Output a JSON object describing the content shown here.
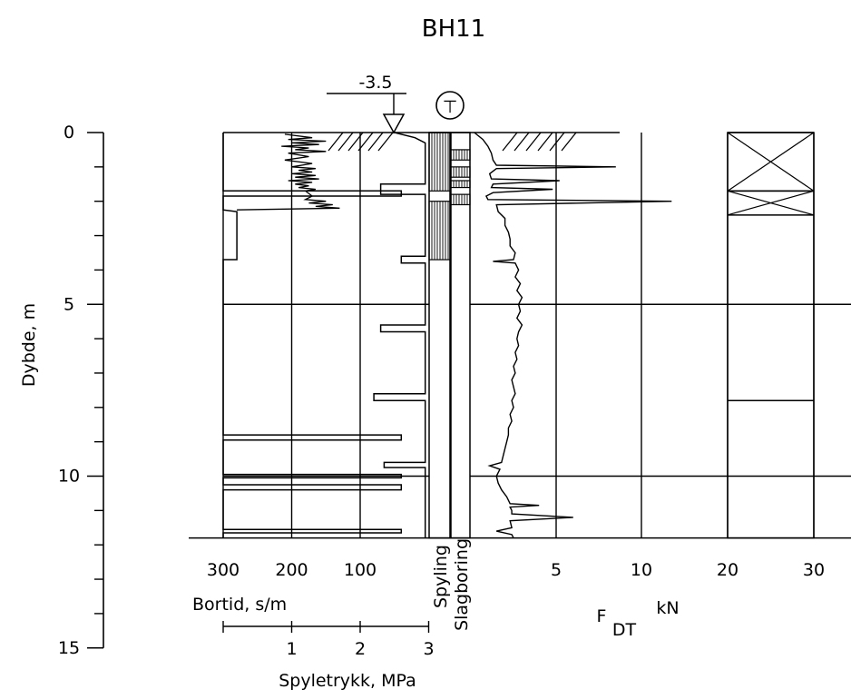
{
  "chart_data": {
    "type": "line",
    "title": "BH11",
    "water_level": "-3.5",
    "symbol": "⊤",
    "depth_axis": {
      "label": "Dybde, m",
      "range": [
        0,
        15
      ],
      "ticks": [
        0,
        5,
        10,
        15
      ],
      "tick_labels": [
        "0",
        "5",
        "10",
        "15"
      ]
    },
    "bore_depth_m": 11.8,
    "bortid": {
      "label": "Bortid, s/m",
      "ticks": [
        300,
        200,
        100
      ],
      "tick_labels": [
        "300",
        "200",
        "100"
      ],
      "range": [
        300,
        0
      ],
      "trace": [
        [
          0.0,
          300
        ],
        [
          0.05,
          300
        ],
        [
          1.7,
          300
        ],
        [
          1.7,
          40
        ],
        [
          1.85,
          40
        ],
        [
          1.85,
          300
        ],
        [
          2.25,
          300
        ],
        [
          2.3,
          280
        ],
        [
          3.7,
          280
        ],
        [
          3.7,
          300
        ],
        [
          8.8,
          300
        ],
        [
          8.8,
          40
        ],
        [
          8.95,
          40
        ],
        [
          8.95,
          300
        ],
        [
          9.95,
          300
        ],
        [
          9.95,
          40
        ],
        [
          10.05,
          40
        ],
        [
          10.05,
          300
        ],
        [
          10.25,
          300
        ],
        [
          10.25,
          40
        ],
        [
          10.4,
          40
        ],
        [
          10.4,
          300
        ],
        [
          11.55,
          300
        ],
        [
          11.55,
          40
        ],
        [
          11.65,
          40
        ],
        [
          11.65,
          300
        ],
        [
          11.8,
          300
        ]
      ],
      "noisy_trace": [
        [
          0.05,
          210
        ],
        [
          0.15,
          170
        ],
        [
          0.2,
          205
        ],
        [
          0.25,
          150
        ],
        [
          0.3,
          200
        ],
        [
          0.35,
          160
        ],
        [
          0.4,
          215
        ],
        [
          0.45,
          175
        ],
        [
          0.5,
          195
        ],
        [
          0.55,
          150
        ],
        [
          0.6,
          205
        ],
        [
          0.7,
          175
        ],
        [
          0.8,
          210
        ],
        [
          0.9,
          170
        ],
        [
          1.0,
          200
        ],
        [
          1.05,
          165
        ],
        [
          1.1,
          190
        ],
        [
          1.15,
          170
        ],
        [
          1.2,
          200
        ],
        [
          1.25,
          165
        ],
        [
          1.3,
          195
        ],
        [
          1.35,
          160
        ],
        [
          1.4,
          205
        ],
        [
          1.45,
          170
        ],
        [
          1.5,
          195
        ],
        [
          1.55,
          175
        ],
        [
          1.6,
          190
        ],
        [
          1.65,
          165
        ],
        [
          1.7,
          180
        ],
        [
          1.85,
          170
        ],
        [
          1.95,
          180
        ],
        [
          2.0,
          150
        ],
        [
          2.05,
          175
        ],
        [
          2.1,
          140
        ],
        [
          2.15,
          165
        ],
        [
          2.2,
          130
        ],
        [
          2.25,
          280
        ]
      ]
    },
    "spyletrykk": {
      "label": "Spyletrykk, MPa",
      "ticks": [
        1,
        2,
        3
      ],
      "tick_labels": [
        "1",
        "2",
        "3"
      ],
      "range": [
        0,
        3
      ],
      "trace": [
        [
          0.0,
          2.5
        ],
        [
          0.15,
          2.8
        ],
        [
          0.3,
          2.95
        ],
        [
          1.5,
          2.95
        ],
        [
          1.5,
          2.3
        ],
        [
          1.8,
          2.3
        ],
        [
          1.8,
          2.95
        ],
        [
          3.6,
          2.95
        ],
        [
          3.6,
          2.6
        ],
        [
          3.8,
          2.6
        ],
        [
          3.8,
          2.95
        ],
        [
          5.6,
          2.95
        ],
        [
          5.6,
          2.3
        ],
        [
          5.8,
          2.3
        ],
        [
          5.8,
          2.95
        ],
        [
          7.6,
          2.95
        ],
        [
          7.6,
          2.2
        ],
        [
          7.8,
          2.2
        ],
        [
          7.8,
          2.95
        ],
        [
          9.6,
          2.95
        ],
        [
          9.6,
          2.35
        ],
        [
          9.75,
          2.35
        ],
        [
          9.75,
          2.95
        ],
        [
          11.8,
          2.95
        ]
      ]
    },
    "spyling": {
      "label": "Spyling",
      "hatched_intervals": [
        [
          0.0,
          1.7
        ],
        [
          2.0,
          3.7
        ]
      ]
    },
    "slagboring": {
      "label": "Slagboring",
      "hatched_intervals": [
        [
          0.5,
          0.8
        ],
        [
          1.0,
          1.3
        ],
        [
          1.4,
          1.6
        ],
        [
          1.8,
          2.1
        ]
      ]
    },
    "fdt": {
      "label_main": "F",
      "label_sub": "DT",
      "label_unit": "kN",
      "ticks": [
        5,
        10,
        20,
        30
      ],
      "tick_labels": [
        "5",
        "10",
        "20",
        "30"
      ],
      "trace": [
        [
          0.0,
          0.2
        ],
        [
          0.2,
          0.7
        ],
        [
          0.4,
          1.0
        ],
        [
          0.6,
          1.2
        ],
        [
          0.8,
          1.3
        ],
        [
          0.95,
          1.5
        ],
        [
          1.0,
          8.5
        ],
        [
          1.05,
          1.5
        ],
        [
          1.2,
          1.1
        ],
        [
          1.35,
          1.2
        ],
        [
          1.4,
          5.2
        ],
        [
          1.5,
          1.3
        ],
        [
          1.6,
          1.2
        ],
        [
          1.65,
          4.8
        ],
        [
          1.75,
          1.3
        ],
        [
          1.85,
          0.9
        ],
        [
          1.95,
          1.0
        ],
        [
          2.0,
          13.5
        ],
        [
          2.1,
          1.5
        ],
        [
          2.3,
          1.6
        ],
        [
          2.5,
          2.0
        ],
        [
          2.7,
          2.0
        ],
        [
          2.9,
          2.2
        ],
        [
          3.1,
          2.3
        ],
        [
          3.3,
          2.3
        ],
        [
          3.5,
          2.6
        ],
        [
          3.7,
          2.5
        ],
        [
          3.75,
          1.3
        ],
        [
          3.8,
          2.6
        ],
        [
          4.0,
          2.8
        ],
        [
          4.2,
          2.6
        ],
        [
          4.4,
          2.9
        ],
        [
          4.6,
          2.7
        ],
        [
          4.8,
          3.0
        ],
        [
          5.0,
          2.8
        ],
        [
          5.2,
          2.9
        ],
        [
          5.4,
          2.7
        ],
        [
          5.6,
          3.0
        ],
        [
          5.8,
          2.8
        ],
        [
          6.0,
          2.7
        ],
        [
          6.2,
          2.8
        ],
        [
          6.4,
          2.6
        ],
        [
          6.6,
          2.7
        ],
        [
          6.8,
          2.5
        ],
        [
          7.0,
          2.6
        ],
        [
          7.2,
          2.4
        ],
        [
          7.4,
          2.5
        ],
        [
          7.6,
          2.6
        ],
        [
          7.8,
          2.4
        ],
        [
          8.0,
          2.5
        ],
        [
          8.2,
          2.3
        ],
        [
          8.4,
          2.4
        ],
        [
          8.6,
          2.2
        ],
        [
          8.8,
          2.2
        ],
        [
          9.0,
          2.1
        ],
        [
          9.2,
          2.0
        ],
        [
          9.4,
          1.9
        ],
        [
          9.6,
          1.8
        ],
        [
          9.7,
          1.1
        ],
        [
          9.8,
          1.7
        ],
        [
          10.0,
          1.5
        ],
        [
          10.2,
          1.6
        ],
        [
          10.4,
          1.8
        ],
        [
          10.6,
          2.1
        ],
        [
          10.8,
          2.3
        ],
        [
          10.85,
          4.0
        ],
        [
          10.9,
          2.3
        ],
        [
          11.0,
          2.4
        ],
        [
          11.1,
          2.4
        ],
        [
          11.2,
          6.0
        ],
        [
          11.3,
          2.3
        ],
        [
          11.5,
          2.4
        ],
        [
          11.6,
          1.5
        ],
        [
          11.7,
          2.4
        ],
        [
          11.8,
          2.5
        ]
      ]
    },
    "soil_column": {
      "crossed_intervals": [
        [
          0.0,
          1.7
        ],
        [
          1.7,
          2.4
        ]
      ],
      "boundaries": [
        7.8
      ]
    },
    "grid": true
  }
}
